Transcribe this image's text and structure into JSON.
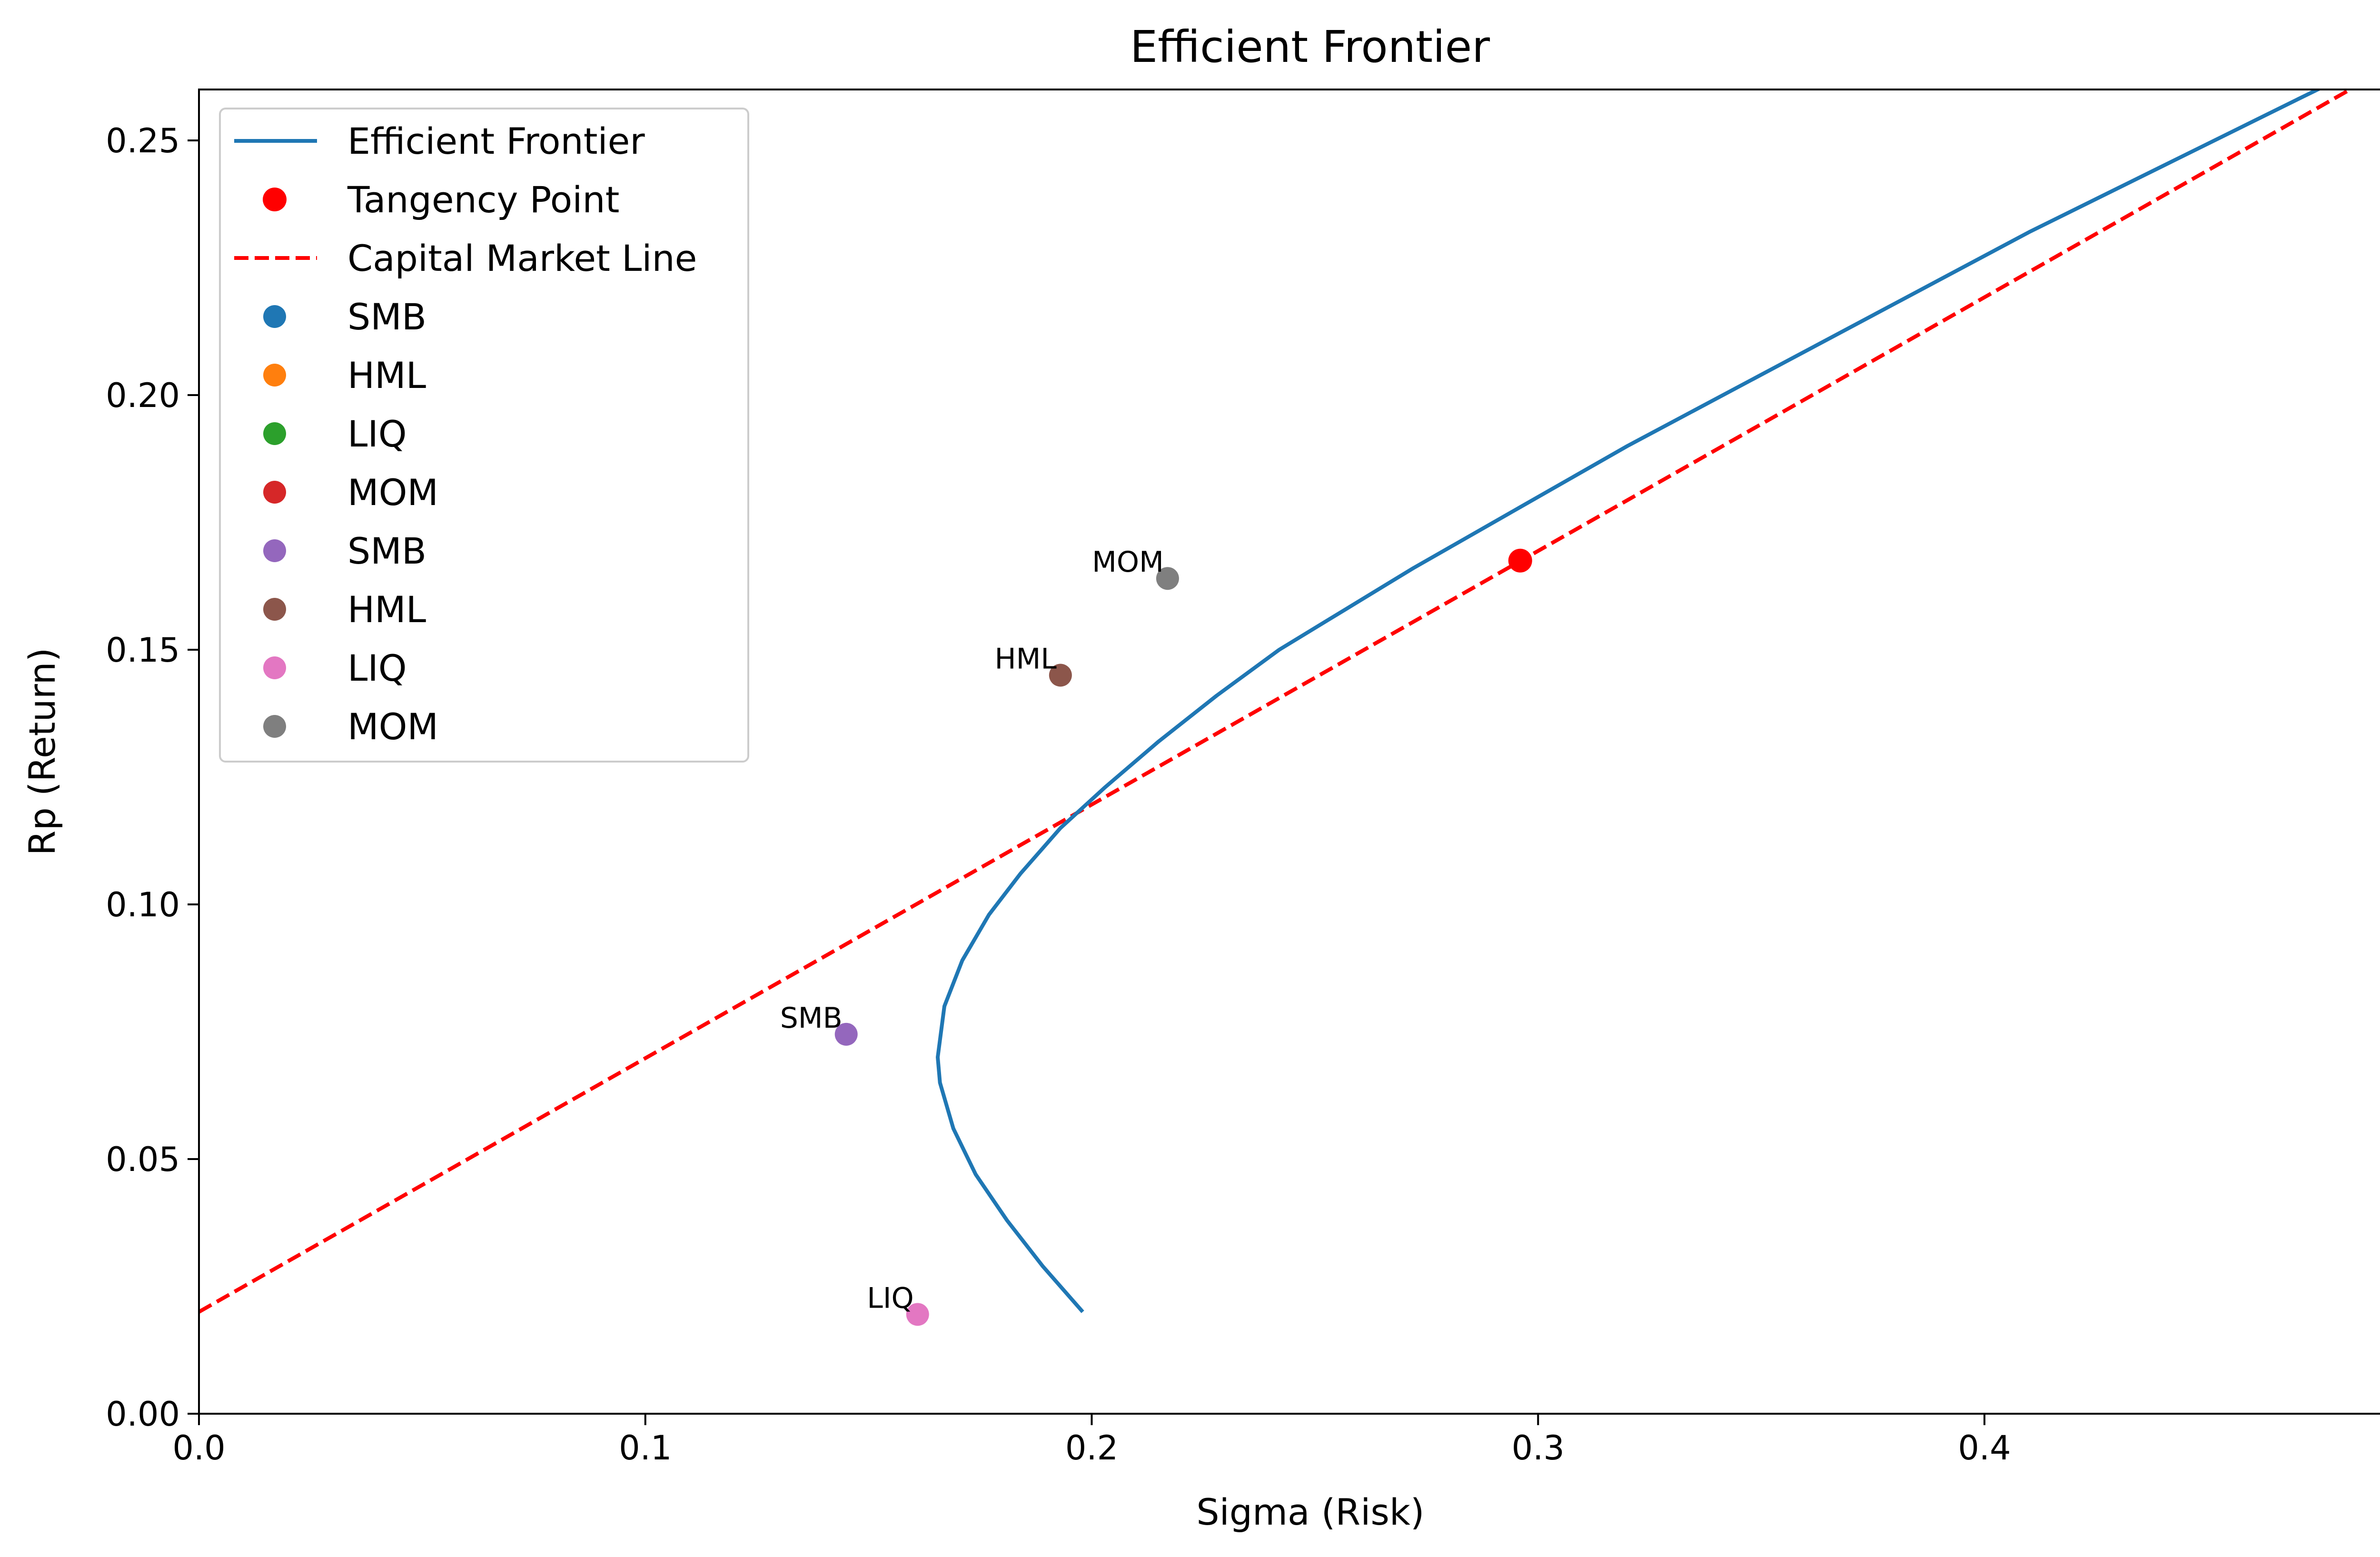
{
  "chart_data": {
    "type": "line",
    "title": "Efficient Frontier",
    "xlabel": "Sigma (Risk)",
    "ylabel": "Rp (Return)",
    "xlim": [
      0.0,
      0.498
    ],
    "ylim": [
      0.0,
      0.26
    ],
    "xticks": [
      0.0,
      0.1,
      0.2,
      0.3,
      0.4
    ],
    "xtick_labels": [
      "0.0",
      "0.1",
      "0.2",
      "0.3",
      "0.4"
    ],
    "yticks": [
      0.0,
      0.05,
      0.1,
      0.15,
      0.2,
      0.25
    ],
    "ytick_labels": [
      "0.00",
      "0.05",
      "0.10",
      "0.15",
      "0.20",
      "0.25"
    ],
    "grid": false,
    "legend_position": "top-left",
    "frontier": {
      "name": "Efficient Frontier",
      "color": "#1f77b4",
      "points": [
        [
          0.198,
          0.02
        ],
        [
          0.189,
          0.029
        ],
        [
          0.181,
          0.038
        ],
        [
          0.174,
          0.047
        ],
        [
          0.169,
          0.056
        ],
        [
          0.166,
          0.065
        ],
        [
          0.1655,
          0.07
        ],
        [
          0.167,
          0.08
        ],
        [
          0.171,
          0.089
        ],
        [
          0.177,
          0.098
        ],
        [
          0.184,
          0.106
        ],
        [
          0.193,
          0.115
        ],
        [
          0.203,
          0.123
        ],
        [
          0.215,
          0.132
        ],
        [
          0.228,
          0.141
        ],
        [
          0.242,
          0.15
        ],
        [
          0.257,
          0.158
        ],
        [
          0.272,
          0.166
        ],
        [
          0.296,
          0.178
        ],
        [
          0.32,
          0.19
        ],
        [
          0.35,
          0.204
        ],
        [
          0.38,
          0.218
        ],
        [
          0.41,
          0.232
        ],
        [
          0.44,
          0.245
        ],
        [
          0.47,
          0.258
        ],
        [
          0.498,
          0.27
        ]
      ]
    },
    "tangency_point": {
      "name": "Tangency Point",
      "x": 0.296,
      "y": 0.1675,
      "color": "#ff0000"
    },
    "cml": {
      "name": "Capital Market Line",
      "intercept": 0.02,
      "slope": 0.498,
      "color": "#ff0000"
    },
    "legend_assets": [
      {
        "name": "SMB",
        "color": "#1f77b4"
      },
      {
        "name": "HML",
        "color": "#ff7f0e"
      },
      {
        "name": "LIQ",
        "color": "#2ca02c"
      },
      {
        "name": "MOM",
        "color": "#d62728"
      },
      {
        "name": "SMB",
        "color": "#9467bd"
      },
      {
        "name": "HML",
        "color": "#8c564b"
      },
      {
        "name": "LIQ",
        "color": "#e377c2"
      },
      {
        "name": "MOM",
        "color": "#7f7f7f"
      }
    ],
    "assets": [
      {
        "name": "SMB",
        "x": 0.145,
        "y": 0.0745,
        "color": "#9467bd"
      },
      {
        "name": "HML",
        "x": 0.193,
        "y": 0.145,
        "color": "#8c564b"
      },
      {
        "name": "LIQ",
        "x": 0.161,
        "y": 0.0195,
        "color": "#e377c2"
      },
      {
        "name": "MOM",
        "x": 0.217,
        "y": 0.164,
        "color": "#7f7f7f"
      }
    ]
  }
}
